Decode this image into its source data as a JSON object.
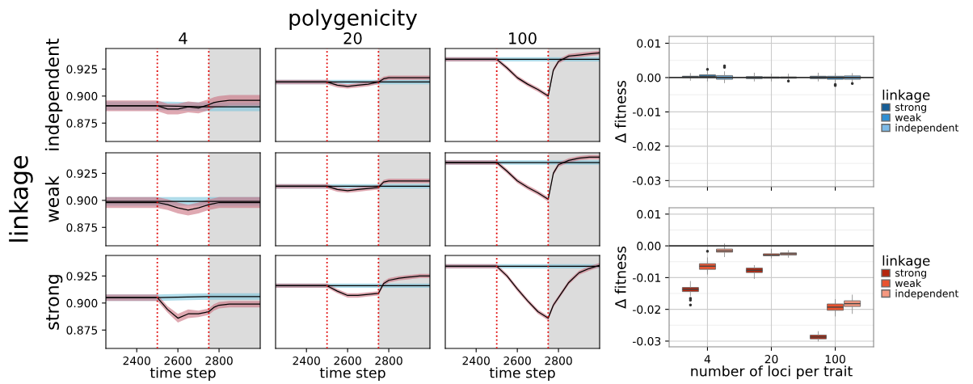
{
  "chart_data": [
    {
      "type": "line",
      "title": "4",
      "ylabel": "independent",
      "colors": [
        "#7cc4dc",
        "#c9707f"
      ],
      "tick_labels": "y",
      "grid": false,
      "legend": false,
      "marker": "none",
      "xlim": [
        2250,
        3000
      ],
      "ylim": [
        0.858,
        0.944
      ],
      "yticks": [
        {
          "value": 0.875,
          "label": "0.875"
        },
        {
          "value": 0.9,
          "label": "0.900"
        },
        {
          "value": 0.925,
          "label": "0.925"
        }
      ],
      "ref_lines": [
        {
          "axis": "x",
          "value": 2500,
          "color": "#e00000",
          "line_style": "dotted"
        },
        {
          "axis": "x",
          "value": 2750,
          "color": "#e00000",
          "line_style": "dotted"
        }
      ],
      "bands": [
        {
          "axis": "x",
          "from": 2750,
          "to": 3000,
          "color": "#dcdcdc"
        }
      ],
      "x": [
        2250,
        2400,
        2500,
        2550,
        2600,
        2650,
        2700,
        2750,
        2775,
        2800,
        2850,
        2900,
        2950,
        3000
      ],
      "series": [
        {
          "color": "#000000",
          "x": [
            2250,
            2500,
            2750,
            3000
          ],
          "values": [
            0.891,
            0.891,
            0.89,
            0.89
          ],
          "lower": [
            0.887,
            0.887,
            0.886,
            0.886
          ],
          "upper": [
            0.895,
            0.895,
            0.894,
            0.894
          ]
        },
        {
          "color": "#000000",
          "values": [
            0.891,
            0.891,
            0.891,
            0.888,
            0.888,
            0.89,
            0.889,
            0.892,
            0.894,
            0.895,
            0.896,
            0.896,
            0.896,
            0.896
          ],
          "lower": [
            0.886,
            0.886,
            0.886,
            0.883,
            0.883,
            0.885,
            0.884,
            0.887,
            0.889,
            0.89,
            0.891,
            0.891,
            0.891,
            0.891
          ],
          "upper": [
            0.896,
            0.896,
            0.896,
            0.893,
            0.893,
            0.895,
            0.894,
            0.897,
            0.899,
            0.9,
            0.901,
            0.901,
            0.901,
            0.901
          ]
        }
      ]
    },
    {
      "type": "line",
      "title": "20",
      "annotations": [
        "polygenicity"
      ],
      "colors": [
        "#7cc4dc",
        "#c9707f"
      ],
      "tick_labels": false,
      "grid": false,
      "legend": false,
      "marker": "none",
      "xlim": [
        2250,
        3000
      ],
      "ylim": [
        0.858,
        0.944
      ],
      "ref_lines": [
        {
          "axis": "x",
          "value": 2500,
          "color": "#e00000",
          "line_style": "dotted"
        },
        {
          "axis": "x",
          "value": 2750,
          "color": "#e00000",
          "line_style": "dotted"
        }
      ],
      "bands": [
        {
          "axis": "x",
          "from": 2750,
          "to": 3000,
          "color": "#dcdcdc"
        }
      ],
      "x": [
        2250,
        2400,
        2500,
        2550,
        2600,
        2650,
        2700,
        2750,
        2775,
        2800,
        2850,
        2900,
        2950,
        3000
      ],
      "series": [
        {
          "color": "#000000",
          "x": [
            2250,
            2500,
            2750,
            3000
          ],
          "values": [
            0.913,
            0.913,
            0.913,
            0.913
          ],
          "lower": [
            0.911,
            0.911,
            0.911,
            0.911
          ],
          "upper": [
            0.915,
            0.915,
            0.915,
            0.915
          ]
        },
        {
          "color": "#000000",
          "values": [
            0.913,
            0.913,
            0.913,
            0.91,
            0.909,
            0.91,
            0.911,
            0.913,
            0.916,
            0.917,
            0.917,
            0.917,
            0.917,
            0.917
          ],
          "lower": [
            0.911,
            0.911,
            0.911,
            0.908,
            0.907,
            0.908,
            0.909,
            0.911,
            0.914,
            0.915,
            0.915,
            0.915,
            0.915,
            0.915
          ],
          "upper": [
            0.915,
            0.915,
            0.915,
            0.912,
            0.911,
            0.912,
            0.913,
            0.915,
            0.918,
            0.919,
            0.919,
            0.919,
            0.919,
            0.919
          ]
        }
      ]
    },
    {
      "type": "line",
      "title": "100",
      "colors": [
        "#7cc4dc",
        "#c9707f"
      ],
      "tick_labels": false,
      "grid": false,
      "legend": false,
      "marker": "none",
      "xlim": [
        2250,
        3000
      ],
      "ylim": [
        0.858,
        0.944
      ],
      "ref_lines": [
        {
          "axis": "x",
          "value": 2500,
          "color": "#e00000",
          "line_style": "dotted"
        },
        {
          "axis": "x",
          "value": 2750,
          "color": "#e00000",
          "line_style": "dotted"
        }
      ],
      "bands": [
        {
          "axis": "x",
          "from": 2750,
          "to": 3000,
          "color": "#dcdcdc"
        }
      ],
      "x": [
        2250,
        2400,
        2500,
        2550,
        2600,
        2650,
        2700,
        2750,
        2775,
        2800,
        2850,
        2900,
        2950,
        3000
      ],
      "series": [
        {
          "color": "#000000",
          "x": [
            2250,
            2500,
            2750,
            3000
          ],
          "values": [
            0.934,
            0.934,
            0.934,
            0.934
          ],
          "lower": [
            0.932,
            0.932,
            0.932,
            0.932
          ],
          "upper": [
            0.936,
            0.936,
            0.936,
            0.936
          ]
        },
        {
          "color": "#000000",
          "values": [
            0.934,
            0.934,
            0.934,
            0.926,
            0.917,
            0.911,
            0.906,
            0.9,
            0.924,
            0.932,
            0.937,
            0.938,
            0.939,
            0.94
          ],
          "lower": [
            0.932,
            0.932,
            0.932,
            0.924,
            0.915,
            0.909,
            0.904,
            0.898,
            0.922,
            0.93,
            0.935,
            0.936,
            0.937,
            0.938
          ],
          "upper": [
            0.936,
            0.936,
            0.936,
            0.928,
            0.919,
            0.913,
            0.908,
            0.902,
            0.926,
            0.934,
            0.939,
            0.94,
            0.941,
            0.942
          ]
        }
      ]
    },
    {
      "type": "line",
      "ylabel": "weak",
      "annotations": [
        "linkage"
      ],
      "colors": [
        "#7cc4dc",
        "#c9707f"
      ],
      "tick_labels": "y",
      "grid": false,
      "legend": false,
      "marker": "none",
      "xlim": [
        2250,
        3000
      ],
      "ylim": [
        0.858,
        0.944
      ],
      "yticks": [
        {
          "value": 0.875,
          "label": "0.875"
        },
        {
          "value": 0.9,
          "label": "0.900"
        },
        {
          "value": 0.925,
          "label": "0.925"
        }
      ],
      "ref_lines": [
        {
          "axis": "x",
          "value": 2500,
          "color": "#e00000",
          "line_style": "dotted"
        },
        {
          "axis": "x",
          "value": 2750,
          "color": "#e00000",
          "line_style": "dotted"
        }
      ],
      "bands": [
        {
          "axis": "x",
          "from": 2750,
          "to": 3000,
          "color": "#dcdcdc"
        }
      ],
      "x": [
        2250,
        2400,
        2500,
        2550,
        2600,
        2650,
        2700,
        2750,
        2775,
        2800,
        2850,
        2900,
        2950,
        3000
      ],
      "series": [
        {
          "color": "#000000",
          "x": [
            2250,
            2500,
            2750,
            3000
          ],
          "values": [
            0.899,
            0.899,
            0.899,
            0.899
          ],
          "lower": [
            0.895,
            0.895,
            0.895,
            0.895
          ],
          "upper": [
            0.903,
            0.903,
            0.903,
            0.903
          ]
        },
        {
          "color": "#000000",
          "values": [
            0.898,
            0.898,
            0.898,
            0.896,
            0.893,
            0.891,
            0.893,
            0.896,
            0.897,
            0.898,
            0.898,
            0.898,
            0.898,
            0.898
          ],
          "lower": [
            0.893,
            0.893,
            0.893,
            0.891,
            0.888,
            0.886,
            0.888,
            0.891,
            0.892,
            0.893,
            0.893,
            0.893,
            0.893,
            0.893
          ],
          "upper": [
            0.903,
            0.903,
            0.903,
            0.901,
            0.898,
            0.896,
            0.898,
            0.901,
            0.902,
            0.903,
            0.903,
            0.903,
            0.903,
            0.903
          ]
        }
      ]
    },
    {
      "type": "line",
      "colors": [
        "#7cc4dc",
        "#c9707f"
      ],
      "tick_labels": false,
      "grid": false,
      "legend": false,
      "marker": "none",
      "xlim": [
        2250,
        3000
      ],
      "ylim": [
        0.858,
        0.944
      ],
      "ref_lines": [
        {
          "axis": "x",
          "value": 2500,
          "color": "#e00000",
          "line_style": "dotted"
        },
        {
          "axis": "x",
          "value": 2750,
          "color": "#e00000",
          "line_style": "dotted"
        }
      ],
      "bands": [
        {
          "axis": "x",
          "from": 2750,
          "to": 3000,
          "color": "#dcdcdc"
        }
      ],
      "x": [
        2250,
        2400,
        2500,
        2550,
        2600,
        2650,
        2700,
        2750,
        2775,
        2800,
        2850,
        2900,
        2950,
        3000
      ],
      "series": [
        {
          "color": "#000000",
          "x": [
            2250,
            2500,
            2750,
            3000
          ],
          "values": [
            0.913,
            0.913,
            0.913,
            0.913
          ],
          "lower": [
            0.911,
            0.911,
            0.911,
            0.911
          ],
          "upper": [
            0.915,
            0.915,
            0.915,
            0.915
          ]
        },
        {
          "color": "#000000",
          "values": [
            0.913,
            0.913,
            0.913,
            0.91,
            0.909,
            0.91,
            0.911,
            0.912,
            0.917,
            0.918,
            0.918,
            0.918,
            0.918,
            0.918
          ],
          "lower": [
            0.911,
            0.911,
            0.911,
            0.908,
            0.907,
            0.908,
            0.909,
            0.91,
            0.915,
            0.916,
            0.916,
            0.916,
            0.916,
            0.916
          ],
          "upper": [
            0.915,
            0.915,
            0.915,
            0.912,
            0.911,
            0.912,
            0.913,
            0.914,
            0.919,
            0.92,
            0.92,
            0.92,
            0.92,
            0.92
          ]
        }
      ]
    },
    {
      "type": "line",
      "colors": [
        "#7cc4dc",
        "#c9707f"
      ],
      "tick_labels": false,
      "grid": false,
      "legend": false,
      "marker": "none",
      "xlim": [
        2250,
        3000
      ],
      "ylim": [
        0.858,
        0.944
      ],
      "ref_lines": [
        {
          "axis": "x",
          "value": 2500,
          "color": "#e00000",
          "line_style": "dotted"
        },
        {
          "axis": "x",
          "value": 2750,
          "color": "#e00000",
          "line_style": "dotted"
        }
      ],
      "bands": [
        {
          "axis": "x",
          "from": 2750,
          "to": 3000,
          "color": "#dcdcdc"
        }
      ],
      "x": [
        2250,
        2400,
        2500,
        2550,
        2600,
        2650,
        2700,
        2750,
        2775,
        2800,
        2850,
        2900,
        2950,
        3000
      ],
      "series": [
        {
          "color": "#000000",
          "x": [
            2250,
            2500,
            2750,
            3000
          ],
          "values": [
            0.935,
            0.935,
            0.935,
            0.935
          ],
          "lower": [
            0.933,
            0.933,
            0.933,
            0.933
          ],
          "upper": [
            0.937,
            0.937,
            0.937,
            0.937
          ]
        },
        {
          "color": "#000000",
          "values": [
            0.935,
            0.935,
            0.935,
            0.927,
            0.918,
            0.912,
            0.907,
            0.901,
            0.925,
            0.933,
            0.937,
            0.939,
            0.94,
            0.94
          ],
          "lower": [
            0.933,
            0.933,
            0.933,
            0.925,
            0.916,
            0.91,
            0.905,
            0.899,
            0.923,
            0.931,
            0.935,
            0.937,
            0.938,
            0.938
          ],
          "upper": [
            0.937,
            0.937,
            0.937,
            0.929,
            0.92,
            0.914,
            0.909,
            0.903,
            0.927,
            0.935,
            0.939,
            0.941,
            0.942,
            0.942
          ]
        }
      ]
    },
    {
      "type": "line",
      "ylabel": "strong",
      "xlabel": "time step",
      "colors": [
        "#7cc4dc",
        "#c9707f"
      ],
      "grid": false,
      "legend": false,
      "marker": "none",
      "xlim": [
        2250,
        3000
      ],
      "ylim": [
        0.858,
        0.944
      ],
      "xticks": [
        2400,
        2600,
        2800
      ],
      "yticks": [
        {
          "value": 0.875,
          "label": "0.875"
        },
        {
          "value": 0.9,
          "label": "0.900"
        },
        {
          "value": 0.925,
          "label": "0.925"
        }
      ],
      "ref_lines": [
        {
          "axis": "x",
          "value": 2500,
          "color": "#e00000",
          "line_style": "dotted"
        },
        {
          "axis": "x",
          "value": 2750,
          "color": "#e00000",
          "line_style": "dotted"
        }
      ],
      "bands": [
        {
          "axis": "x",
          "from": 2750,
          "to": 3000,
          "color": "#dcdcdc"
        }
      ],
      "x": [
        2250,
        2400,
        2500,
        2550,
        2600,
        2650,
        2700,
        2750,
        2775,
        2800,
        2850,
        2900,
        2950,
        3000
      ],
      "series": [
        {
          "color": "#000000",
          "x": [
            2250,
            2500,
            2750,
            3000
          ],
          "values": [
            0.905,
            0.905,
            0.906,
            0.906
          ],
          "lower": [
            0.902,
            0.902,
            0.903,
            0.903
          ],
          "upper": [
            0.908,
            0.908,
            0.909,
            0.909
          ]
        },
        {
          "color": "#000000",
          "values": [
            0.905,
            0.905,
            0.905,
            0.894,
            0.886,
            0.89,
            0.89,
            0.892,
            0.896,
            0.898,
            0.899,
            0.899,
            0.899,
            0.899
          ],
          "lower": [
            0.902,
            0.902,
            0.902,
            0.891,
            0.882,
            0.886,
            0.887,
            0.889,
            0.893,
            0.895,
            0.896,
            0.896,
            0.896,
            0.896
          ],
          "upper": [
            0.908,
            0.908,
            0.908,
            0.897,
            0.89,
            0.894,
            0.893,
            0.895,
            0.899,
            0.901,
            0.902,
            0.902,
            0.902,
            0.902
          ]
        }
      ]
    },
    {
      "type": "line",
      "xlabel": "time step",
      "colors": [
        "#7cc4dc",
        "#c9707f"
      ],
      "tick_labels": "x",
      "grid": false,
      "legend": false,
      "marker": "none",
      "xlim": [
        2250,
        3000
      ],
      "ylim": [
        0.858,
        0.944
      ],
      "xticks": [
        2400,
        2600,
        2800
      ],
      "ref_lines": [
        {
          "axis": "x",
          "value": 2500,
          "color": "#e00000",
          "line_style": "dotted"
        },
        {
          "axis": "x",
          "value": 2750,
          "color": "#e00000",
          "line_style": "dotted"
        }
      ],
      "bands": [
        {
          "axis": "x",
          "from": 2750,
          "to": 3000,
          "color": "#dcdcdc"
        }
      ],
      "x": [
        2250,
        2400,
        2500,
        2550,
        2600,
        2650,
        2700,
        2750,
        2775,
        2800,
        2850,
        2900,
        2950,
        3000
      ],
      "series": [
        {
          "color": "#000000",
          "x": [
            2250,
            2500,
            2750,
            3000
          ],
          "values": [
            0.916,
            0.916,
            0.916,
            0.916
          ],
          "lower": [
            0.914,
            0.914,
            0.914,
            0.914
          ],
          "upper": [
            0.918,
            0.918,
            0.918,
            0.918
          ]
        },
        {
          "color": "#000000",
          "values": [
            0.916,
            0.916,
            0.916,
            0.911,
            0.907,
            0.907,
            0.908,
            0.909,
            0.918,
            0.921,
            0.923,
            0.924,
            0.925,
            0.925
          ],
          "lower": [
            0.914,
            0.914,
            0.914,
            0.909,
            0.905,
            0.905,
            0.906,
            0.907,
            0.916,
            0.919,
            0.921,
            0.922,
            0.923,
            0.923
          ],
          "upper": [
            0.918,
            0.918,
            0.918,
            0.913,
            0.909,
            0.909,
            0.91,
            0.911,
            0.92,
            0.923,
            0.925,
            0.926,
            0.927,
            0.927
          ]
        }
      ]
    },
    {
      "type": "line",
      "xlabel": "time step",
      "colors": [
        "#7cc4dc",
        "#c9707f"
      ],
      "tick_labels": "x",
      "grid": false,
      "legend": false,
      "marker": "none",
      "xlim": [
        2250,
        3000
      ],
      "ylim": [
        0.858,
        0.944
      ],
      "xticks": [
        2400,
        2600,
        2800
      ],
      "ref_lines": [
        {
          "axis": "x",
          "value": 2500,
          "color": "#e00000",
          "line_style": "dotted"
        },
        {
          "axis": "x",
          "value": 2750,
          "color": "#e00000",
          "line_style": "dotted"
        }
      ],
      "bands": [
        {
          "axis": "x",
          "from": 2750,
          "to": 3000,
          "color": "#dcdcdc"
        }
      ],
      "x": [
        2250,
        2400,
        2500,
        2550,
        2600,
        2650,
        2700,
        2750,
        2775,
        2800,
        2850,
        2900,
        2950,
        3000
      ],
      "series": [
        {
          "color": "#000000",
          "x": [
            2250,
            2500,
            2750,
            3000
          ],
          "values": [
            0.934,
            0.934,
            0.934,
            0.934
          ],
          "lower": [
            0.932,
            0.932,
            0.932,
            0.932
          ],
          "upper": [
            0.936,
            0.936,
            0.936,
            0.936
          ]
        },
        {
          "color": "#000000",
          "values": [
            0.934,
            0.934,
            0.934,
            0.925,
            0.913,
            0.902,
            0.892,
            0.886,
            0.898,
            0.905,
            0.919,
            0.928,
            0.932,
            0.935
          ],
          "lower": [
            0.932,
            0.932,
            0.932,
            0.923,
            0.911,
            0.9,
            0.89,
            0.884,
            0.896,
            0.903,
            0.917,
            0.926,
            0.93,
            0.933
          ],
          "upper": [
            0.936,
            0.936,
            0.936,
            0.927,
            0.915,
            0.904,
            0.894,
            0.888,
            0.9,
            0.907,
            0.921,
            0.93,
            0.934,
            0.937
          ]
        }
      ]
    },
    {
      "type": "box",
      "ylabel": "Δ fitness",
      "legend_title": "linkage",
      "legend": "right",
      "grid": true,
      "tick_labels": "y",
      "categories": [
        "4",
        "20",
        "100"
      ],
      "ylim": [
        -0.0318,
        0.012
      ],
      "yticks": [
        {
          "value": 0.01,
          "label": "0.01"
        },
        {
          "value": 0,
          "label": "0.00"
        },
        {
          "value": -0.01,
          "label": "-0.01"
        },
        {
          "value": -0.02,
          "label": "-0.02"
        },
        {
          "value": -0.03,
          "label": "-0.03"
        }
      ],
      "ref_lines": [
        {
          "axis": "y",
          "value": 0,
          "color": "#333333",
          "line_style": "solid"
        }
      ],
      "series": [
        {
          "name": "strong",
          "color": "#155d96",
          "boxes": [
            {
              "low": -0.0008,
              "q1": 0.0,
              "median": 0.0002,
              "q3": 0.0004,
              "high": 0.0012
            },
            {
              "low": -0.001,
              "q1": -0.0003,
              "median": 0.0,
              "q3": 0.0003,
              "high": 0.0013
            },
            {
              "low": -0.001,
              "q1": -0.0003,
              "median": 0.0001,
              "q3": 0.0004,
              "high": 0.0013
            }
          ]
        },
        {
          "name": "weak",
          "color": "#2f8fd3",
          "boxes": [
            {
              "low": -0.001,
              "q1": 0.0,
              "median": 0.0004,
              "q3": 0.0008,
              "high": 0.002,
              "outliers": [
                0.0024
              ]
            },
            {
              "low": -0.001,
              "q1": -0.0002,
              "median": 0.0,
              "q3": 0.0002,
              "high": 0.001
            },
            {
              "low": -0.0015,
              "q1": -0.0005,
              "median": 0.0,
              "q3": 0.0004,
              "high": 0.0012,
              "outliers": [
                -0.002,
                -0.0023
              ]
            }
          ]
        },
        {
          "name": "independent",
          "color": "#7dbbe8",
          "boxes": [
            {
              "low": -0.0015,
              "q1": -0.0005,
              "median": 0.0001,
              "q3": 0.0006,
              "high": 0.0017,
              "outliers": [
                0.003,
                0.0034
              ]
            },
            {
              "low": -0.0008,
              "q1": -0.0002,
              "median": 0.0,
              "q3": 0.0002,
              "high": 0.001,
              "outliers": [
                -0.001
              ]
            },
            {
              "low": -0.0015,
              "q1": -0.0005,
              "median": 0.0,
              "q3": 0.0005,
              "high": 0.0012,
              "outliers": [
                -0.0017
              ]
            }
          ]
        }
      ]
    },
    {
      "type": "box",
      "ylabel": "Δ fitness",
      "xlabel": "number of loci per trait",
      "legend_title": "linkage",
      "legend": "right",
      "grid": true,
      "categories": [
        "4",
        "20",
        "100"
      ],
      "ylim": [
        -0.0318,
        0.012
      ],
      "yticks": [
        {
          "value": 0.01,
          "label": "0.01"
        },
        {
          "value": 0,
          "label": "0.00"
        },
        {
          "value": -0.01,
          "label": "-0.01"
        },
        {
          "value": -0.02,
          "label": "-0.02"
        },
        {
          "value": -0.03,
          "label": "-0.03"
        }
      ],
      "ref_lines": [
        {
          "axis": "y",
          "value": 0,
          "color": "#333333",
          "line_style": "solid"
        }
      ],
      "series": [
        {
          "name": "strong",
          "color": "#b5260e",
          "boxes": [
            {
              "low": -0.0157,
              "q1": -0.0144,
              "median": -0.0137,
              "q3": -0.0131,
              "high": -0.0112,
              "outliers": [
                -0.0165,
                -0.0171,
                -0.0186
              ]
            },
            {
              "low": -0.0103,
              "q1": -0.0084,
              "median": -0.0077,
              "q3": -0.007,
              "high": -0.0062
            },
            {
              "low": -0.03,
              "q1": -0.0293,
              "median": -0.0287,
              "q3": -0.0281,
              "high": -0.027
            }
          ]
        },
        {
          "name": "weak",
          "color": "#e8532f",
          "boxes": [
            {
              "low": -0.0089,
              "q1": -0.0074,
              "median": -0.0064,
              "q3": -0.0056,
              "high": -0.0038,
              "outliers": [
                -0.0017
              ]
            },
            {
              "low": -0.0038,
              "q1": -0.0031,
              "median": -0.0029,
              "q3": -0.0025,
              "high": -0.0011
            },
            {
              "low": -0.0221,
              "q1": -0.0203,
              "median": -0.0193,
              "q3": -0.0183,
              "high": -0.0169
            }
          ]
        },
        {
          "name": "independent",
          "color": "#f59880",
          "boxes": [
            {
              "low": -0.0034,
              "q1": -0.002,
              "median": -0.0016,
              "q3": -0.001,
              "high": 0.0006
            },
            {
              "low": -0.0036,
              "q1": -0.0029,
              "median": -0.0025,
              "q3": -0.0022,
              "high": -0.0015
            },
            {
              "low": -0.0213,
              "q1": -0.0191,
              "median": -0.0182,
              "q3": -0.0173,
              "high": -0.0155
            }
          ]
        }
      ]
    }
  ]
}
